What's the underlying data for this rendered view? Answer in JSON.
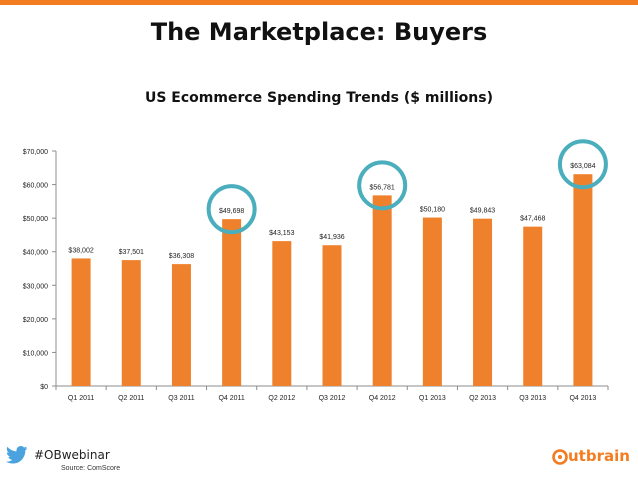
{
  "slide": {
    "title": "The Marketplace: Buyers",
    "hashtag": "#OBwebinar",
    "source": "Source: ComScore",
    "brand": "utbrain",
    "accent_color": "#f47c20",
    "highlight_color": "#4aaebd",
    "icons": [
      "twitter-bird-icon",
      "outbrain-logo"
    ]
  },
  "chart_data": {
    "type": "bar",
    "title": "US Ecommerce Spending Trends ($ millions)",
    "xlabel": "",
    "ylabel": "",
    "categories": [
      "Q1 2011",
      "Q2 2011",
      "Q3 2011",
      "Q4 2011",
      "Q2 2012",
      "Q3 2012",
      "Q4 2012",
      "Q1 2013",
      "Q2 2013",
      "Q3 2013",
      "Q4 2013"
    ],
    "values": [
      38002,
      37501,
      36308,
      49698,
      43153,
      41936,
      56781,
      50180,
      49843,
      47468,
      63084
    ],
    "data_labels": [
      "$38,002",
      "$37,501",
      "$36,308",
      "$49,698",
      "$43,153",
      "$41,936",
      "$56,781",
      "$50,180",
      "$49,843",
      "$47,468",
      "$63,084"
    ],
    "ylim": [
      0,
      70000
    ],
    "y_ticks": [
      0,
      10000,
      20000,
      30000,
      40000,
      50000,
      60000,
      70000
    ],
    "y_tick_labels": [
      "$0",
      "$10,000",
      "$20,000",
      "$30,000",
      "$40,000",
      "$50,000",
      "$60,000",
      "$70,000"
    ],
    "highlighted": [
      "Q4 2011",
      "Q4 2012",
      "Q4 2013"
    ],
    "bar_color": "#f0812c",
    "grid": false,
    "legend": "none"
  }
}
